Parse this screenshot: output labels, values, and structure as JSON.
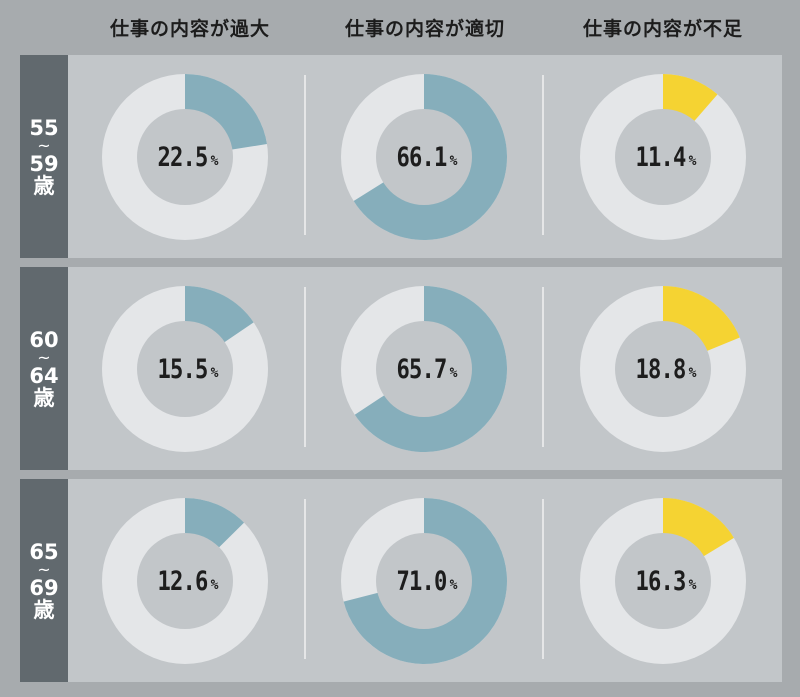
{
  "header": {
    "col1": "仕事の内容が過大",
    "col2": "仕事の内容が適切",
    "col3": "仕事の内容が不足"
  },
  "rows": [
    {
      "label_top": "55",
      "label_mid": "~",
      "label_bot": "59",
      "label_unit": "歳"
    },
    {
      "label_top": "60",
      "label_mid": "~",
      "label_bot": "64",
      "label_unit": "歳"
    },
    {
      "label_top": "65",
      "label_mid": "~",
      "label_bot": "69",
      "label_unit": "歳"
    }
  ],
  "colors": {
    "ring_bg": "#e4e6e8",
    "excess": "#86aebb",
    "appropriate": "#86aebb",
    "insufficient": "#f5d332",
    "center": "#c2c6c9"
  },
  "unit": "%",
  "chart_data": {
    "type": "pie",
    "categories": [
      "仕事の内容が過大",
      "仕事の内容が適切",
      "仕事の内容が不足"
    ],
    "groups": [
      "55~59歳",
      "60~64歳",
      "65~69歳"
    ],
    "series": [
      {
        "name": "55~59歳",
        "values": [
          22.5,
          66.1,
          11.4
        ],
        "labels": [
          "22.5",
          "66.1",
          "11.4"
        ]
      },
      {
        "name": "60~64歳",
        "values": [
          15.5,
          65.7,
          18.8
        ],
        "labels": [
          "15.5",
          "65.7",
          "18.8"
        ]
      },
      {
        "name": "65~69歳",
        "values": [
          12.6,
          71.0,
          16.3
        ],
        "labels": [
          "12.6",
          "71.0",
          "16.3"
        ]
      }
    ]
  }
}
